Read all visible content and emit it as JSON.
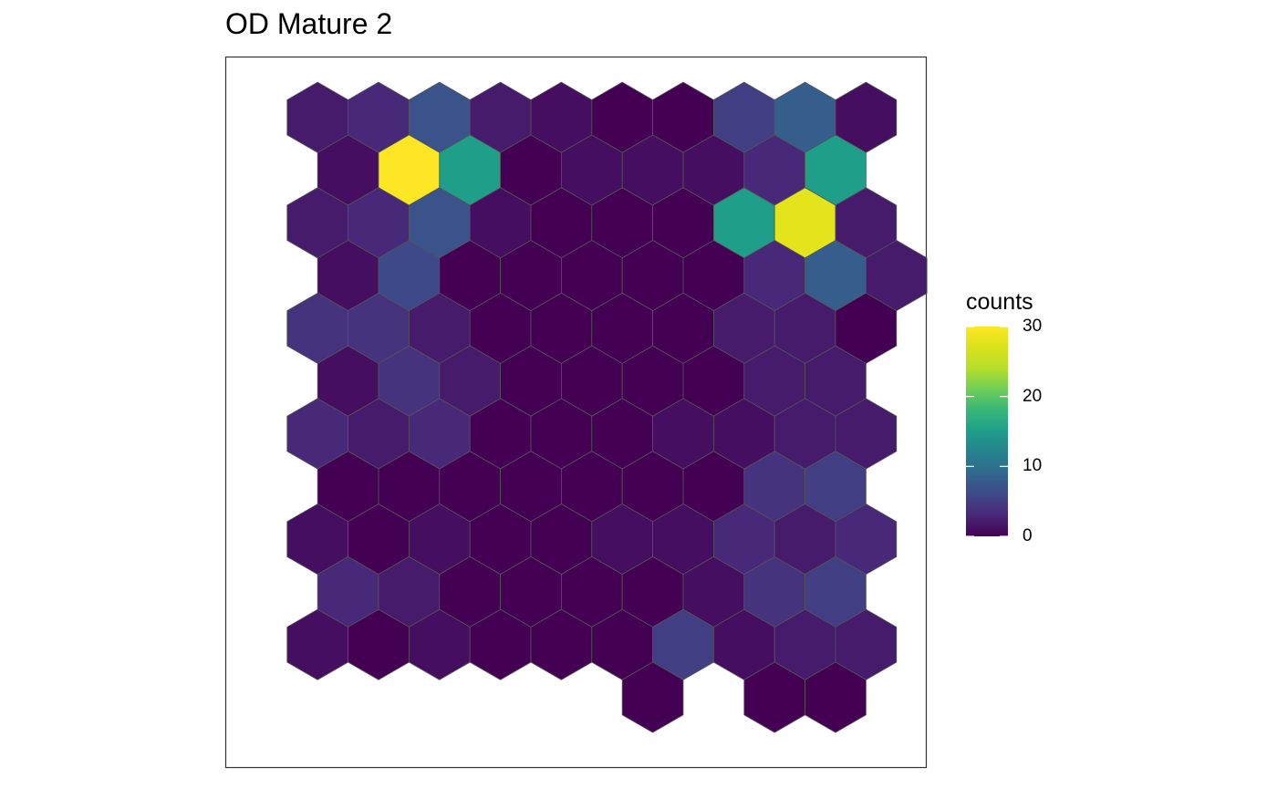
{
  "chart_data": {
    "type": "heatmap",
    "subtype": "hexbin",
    "title": "OD Mature 2",
    "xlabel": "",
    "ylabel": "",
    "grid": false,
    "legend": {
      "title": "counts",
      "position": "right",
      "scale": "viridis",
      "min": 0,
      "max": 30,
      "ticks": [
        0,
        10,
        20,
        30
      ]
    },
    "rows": [
      {
        "row": 1,
        "offset": "even",
        "values": [
          2,
          3,
          7,
          2,
          1,
          0,
          0,
          5,
          8,
          1
        ]
      },
      {
        "row": 2,
        "offset": "odd",
        "values": [
          1,
          31,
          15,
          0,
          1,
          1,
          1,
          3,
          15,
          null
        ]
      },
      {
        "row": 3,
        "offset": "even",
        "values": [
          2,
          3,
          7,
          1,
          0,
          0,
          0,
          15,
          28,
          2
        ]
      },
      {
        "row": 4,
        "offset": "odd",
        "values": [
          1,
          6,
          0,
          0,
          0,
          0,
          0,
          3,
          8,
          2
        ]
      },
      {
        "row": 5,
        "offset": "even",
        "values": [
          4,
          4,
          2,
          0,
          0,
          0,
          0,
          2,
          2,
          0
        ]
      },
      {
        "row": 6,
        "offset": "odd",
        "values": [
          1,
          4,
          2,
          0,
          0,
          0,
          0,
          2,
          2,
          null
        ]
      },
      {
        "row": 7,
        "offset": "even",
        "values": [
          3,
          2,
          3,
          0,
          0,
          0,
          1,
          1,
          2,
          2
        ]
      },
      {
        "row": 8,
        "offset": "odd",
        "values": [
          0,
          0,
          0,
          0,
          0,
          0,
          0,
          4,
          5,
          null
        ]
      },
      {
        "row": 9,
        "offset": "even",
        "values": [
          1,
          0,
          1,
          0,
          0,
          1,
          1,
          3,
          2,
          3
        ]
      },
      {
        "row": 10,
        "offset": "odd",
        "values": [
          3,
          2,
          0,
          0,
          0,
          0,
          1,
          4,
          5,
          null
        ]
      },
      {
        "row": 11,
        "offset": "even",
        "values": [
          1,
          0,
          1,
          0,
          0,
          0,
          5,
          1,
          2,
          2
        ]
      },
      {
        "row": 12,
        "offset": "odd",
        "values": [
          null,
          null,
          null,
          null,
          null,
          0,
          null,
          0,
          0,
          null
        ]
      }
    ]
  }
}
